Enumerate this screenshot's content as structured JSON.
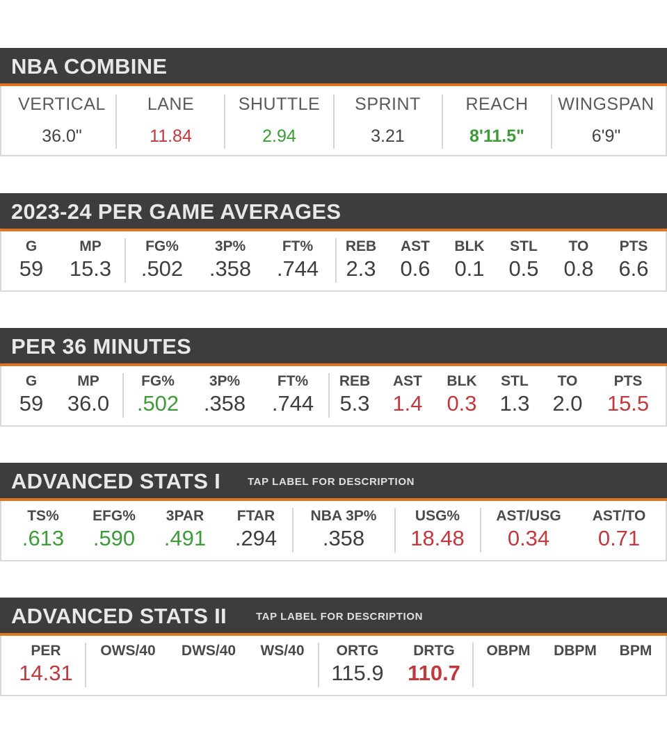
{
  "colors": {
    "header_bg": "#3d3d3d",
    "accent": "#e0751e",
    "red": "#c0393f",
    "green": "#3d9b3a"
  },
  "combine": {
    "title": "NBA COMBINE",
    "cols": [
      {
        "label": "VERTICAL",
        "value": "36.0\""
      },
      {
        "label": "LANE",
        "value": "11.84",
        "color": "red"
      },
      {
        "label": "SHUTTLE",
        "value": "2.94",
        "color": "green"
      },
      {
        "label": "SPRINT",
        "value": "3.21"
      },
      {
        "label": "REACH",
        "value": "8'11.5\"",
        "color": "green"
      },
      {
        "label": "WINGSPAN",
        "value": "6'9\""
      }
    ]
  },
  "per_game": {
    "title": "2023-24 PER GAME AVERAGES",
    "cols": [
      {
        "label": "G",
        "value": "59"
      },
      {
        "label": "MP",
        "value": "15.3"
      },
      {
        "label": "FG%",
        "value": ".502"
      },
      {
        "label": "3P%",
        "value": ".358"
      },
      {
        "label": "FT%",
        "value": ".744"
      },
      {
        "label": "REB",
        "value": "2.3"
      },
      {
        "label": "AST",
        "value": "0.6"
      },
      {
        "label": "BLK",
        "value": "0.1"
      },
      {
        "label": "STL",
        "value": "0.5"
      },
      {
        "label": "TO",
        "value": "0.8"
      },
      {
        "label": "PTS",
        "value": "6.6"
      }
    ]
  },
  "per36": {
    "title": "PER 36 MINUTES",
    "cols": [
      {
        "label": "G",
        "value": "59"
      },
      {
        "label": "MP",
        "value": "36.0"
      },
      {
        "label": "FG%",
        "value": ".502",
        "color": "green"
      },
      {
        "label": "3P%",
        "value": ".358"
      },
      {
        "label": "FT%",
        "value": ".744"
      },
      {
        "label": "REB",
        "value": "5.3"
      },
      {
        "label": "AST",
        "value": "1.4",
        "color": "red"
      },
      {
        "label": "BLK",
        "value": "0.3",
        "color": "red"
      },
      {
        "label": "STL",
        "value": "1.3"
      },
      {
        "label": "TO",
        "value": "2.0"
      },
      {
        "label": "PTS",
        "value": "15.5",
        "color": "red"
      }
    ]
  },
  "adv1": {
    "title": "ADVANCED STATS I",
    "hint": "TAP LABEL FOR DESCRIPTION",
    "cols": [
      {
        "label": "TS%",
        "value": ".613",
        "color": "green"
      },
      {
        "label": "EFG%",
        "value": ".590",
        "color": "green"
      },
      {
        "label": "3PAR",
        "value": ".491",
        "color": "green"
      },
      {
        "label": "FTAR",
        "value": ".294"
      },
      {
        "label": "NBA 3P%",
        "value": ".358"
      },
      {
        "label": "USG%",
        "value": "18.48",
        "color": "red"
      },
      {
        "label": "AST/USG",
        "value": "0.34",
        "color": "red"
      },
      {
        "label": "AST/TO",
        "value": "0.71",
        "color": "red"
      }
    ]
  },
  "adv2": {
    "title": "ADVANCED STATS II",
    "hint": "TAP LABEL FOR DESCRIPTION",
    "cols": [
      {
        "label": "PER",
        "value": "14.31",
        "color": "red"
      },
      {
        "label": "OWS/40",
        "value": ""
      },
      {
        "label": "DWS/40",
        "value": ""
      },
      {
        "label": "WS/40",
        "value": ""
      },
      {
        "label": "ORTG",
        "value": "115.9"
      },
      {
        "label": "DRTG",
        "value": "110.7",
        "color": "red",
        "bold": true
      },
      {
        "label": "OBPM",
        "value": ""
      },
      {
        "label": "DBPM",
        "value": ""
      },
      {
        "label": "BPM",
        "value": ""
      }
    ]
  }
}
